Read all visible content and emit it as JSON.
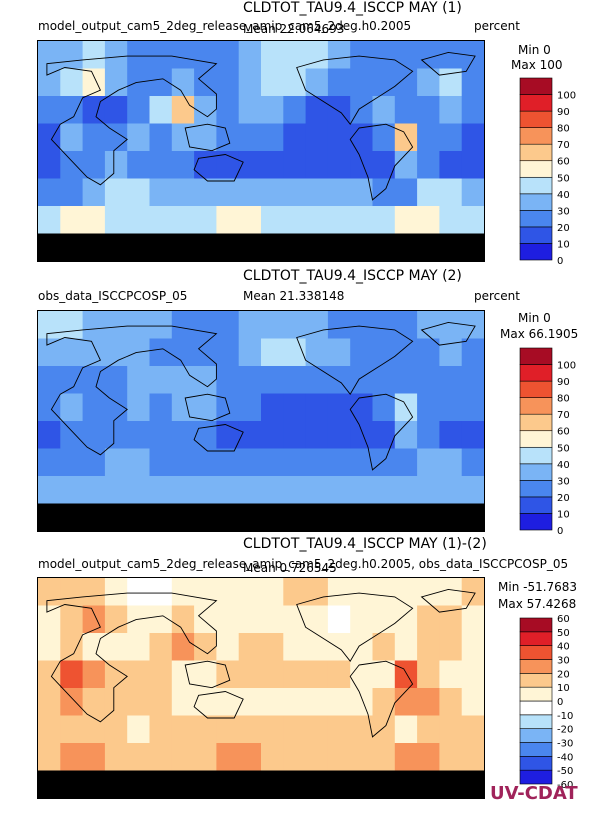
{
  "logo": {
    "text": "UV-CDAT"
  },
  "chart_data": [
    {
      "type": "heatmap",
      "title": "CLDTOT_TAU9.4_ISCCP MAY (1)",
      "dataset": "model_output_cam5_2deg_release_amip_cam5_2deg.h0.2005",
      "mean_label": "Mean 22.064693",
      "units": "percent",
      "min_label": "Min 0",
      "max_label": "Max 100",
      "levels": [
        0,
        10,
        20,
        30,
        40,
        50,
        60,
        70,
        80,
        90,
        100
      ],
      "colors": [
        "#1e1ee0",
        "#2f55e6",
        "#4a86ee",
        "#7ab4f5",
        "#b8e2fa",
        "#fff5d6",
        "#fcc98c",
        "#f7935a",
        "#ee5331",
        "#e01f28",
        "#a70c24"
      ],
      "cells": [
        [
          30,
          30,
          40,
          30,
          20,
          20,
          20,
          20,
          20,
          30,
          40,
          40,
          40,
          30,
          20,
          20,
          20,
          20,
          20,
          20
        ],
        [
          30,
          40,
          50,
          30,
          20,
          20,
          30,
          20,
          20,
          30,
          40,
          40,
          30,
          20,
          20,
          20,
          20,
          30,
          40,
          20
        ],
        [
          20,
          20,
          10,
          10,
          20,
          40,
          60,
          30,
          20,
          30,
          30,
          20,
          10,
          10,
          20,
          30,
          20,
          20,
          30,
          20
        ],
        [
          10,
          30,
          20,
          20,
          30,
          20,
          30,
          30,
          20,
          20,
          20,
          10,
          10,
          10,
          10,
          20,
          60,
          20,
          20,
          10
        ],
        [
          10,
          20,
          20,
          30,
          20,
          20,
          20,
          10,
          10,
          10,
          10,
          10,
          10,
          10,
          10,
          10,
          30,
          20,
          10,
          10
        ],
        [
          20,
          20,
          30,
          40,
          40,
          30,
          30,
          30,
          30,
          30,
          30,
          30,
          30,
          30,
          30,
          20,
          20,
          40,
          40,
          30
        ],
        [
          40,
          50,
          50,
          40,
          40,
          40,
          40,
          40,
          50,
          50,
          40,
          40,
          40,
          40,
          40,
          40,
          50,
          50,
          40,
          40
        ],
        [
          0,
          0,
          0,
          0,
          0,
          0,
          0,
          0,
          0,
          0,
          0,
          0,
          0,
          0,
          0,
          0,
          0,
          0,
          0,
          0
        ]
      ]
    },
    {
      "type": "heatmap",
      "title": "CLDTOT_TAU9.4_ISCCP MAY (2)",
      "dataset": "obs_data_ISCCPCOSP_05",
      "mean_label": "Mean 21.338148",
      "units": "percent",
      "min_label": "Min 0",
      "max_label": "Max 66.1905",
      "levels": [
        0,
        10,
        20,
        30,
        40,
        50,
        60,
        70,
        80,
        90,
        100
      ],
      "colors": [
        "#1e1ee0",
        "#2f55e6",
        "#4a86ee",
        "#7ab4f5",
        "#b8e2fa",
        "#fff5d6",
        "#fcc98c",
        "#f7935a",
        "#ee5331",
        "#e01f28",
        "#a70c24"
      ],
      "cells": [
        [
          40,
          40,
          30,
          30,
          30,
          30,
          20,
          20,
          20,
          30,
          30,
          30,
          30,
          20,
          20,
          20,
          20,
          30,
          30,
          30
        ],
        [
          30,
          30,
          30,
          30,
          30,
          20,
          20,
          20,
          20,
          30,
          40,
          40,
          30,
          30,
          20,
          20,
          20,
          20,
          30,
          20
        ],
        [
          20,
          20,
          20,
          20,
          30,
          30,
          30,
          30,
          20,
          20,
          20,
          20,
          20,
          20,
          20,
          20,
          20,
          20,
          20,
          20
        ],
        [
          20,
          30,
          20,
          20,
          30,
          20,
          30,
          30,
          20,
          20,
          10,
          10,
          10,
          10,
          10,
          20,
          40,
          20,
          20,
          20
        ],
        [
          10,
          20,
          20,
          20,
          20,
          20,
          20,
          20,
          10,
          10,
          10,
          10,
          10,
          10,
          10,
          10,
          30,
          20,
          10,
          10
        ],
        [
          20,
          20,
          20,
          30,
          30,
          20,
          20,
          20,
          20,
          20,
          20,
          20,
          20,
          20,
          20,
          20,
          20,
          30,
          30,
          20
        ],
        [
          30,
          30,
          30,
          30,
          30,
          30,
          30,
          30,
          30,
          30,
          30,
          30,
          30,
          30,
          30,
          30,
          30,
          30,
          30,
          30
        ],
        [
          0,
          0,
          0,
          0,
          0,
          0,
          0,
          0,
          0,
          0,
          0,
          0,
          0,
          0,
          0,
          0,
          0,
          0,
          0,
          0
        ]
      ]
    },
    {
      "type": "heatmap",
      "title": "CLDTOT_TAU9.4_ISCCP MAY (1)-(2)",
      "dataset": "model_output_cam5_2deg_release_amip_cam5_2deg.h0.2005, obs_data_ISCCPCOSP_05",
      "mean_label": "Mean 0.726545",
      "units": "",
      "min_label": "Min -51.7683",
      "max_label": "Max 57.4268",
      "levels": [
        -60,
        -50,
        -40,
        -30,
        -20,
        -10,
        0,
        10,
        20,
        30,
        40,
        50,
        60
      ],
      "colors": [
        "#1e1ee0",
        "#2f55e6",
        "#4a86ee",
        "#7ab4f5",
        "#b8e2fa",
        "#ffffff",
        "#fff5d6",
        "#fcc98c",
        "#f7935a",
        "#ee5331",
        "#e01f28",
        "#a70c24"
      ],
      "cells": [
        [
          10,
          10,
          10,
          0,
          -10,
          -10,
          0,
          0,
          0,
          0,
          0,
          10,
          10,
          0,
          0,
          0,
          0,
          0,
          0,
          10
        ],
        [
          0,
          10,
          20,
          10,
          0,
          0,
          10,
          0,
          0,
          0,
          0,
          0,
          0,
          -10,
          0,
          0,
          0,
          10,
          10,
          0
        ],
        [
          0,
          10,
          0,
          0,
          0,
          10,
          20,
          10,
          0,
          10,
          10,
          0,
          0,
          0,
          0,
          10,
          0,
          10,
          10,
          0
        ],
        [
          10,
          30,
          20,
          10,
          10,
          10,
          0,
          0,
          10,
          10,
          10,
          10,
          10,
          10,
          0,
          0,
          30,
          10,
          0,
          0
        ],
        [
          10,
          20,
          10,
          10,
          10,
          10,
          0,
          0,
          0,
          0,
          0,
          0,
          0,
          0,
          0,
          10,
          20,
          20,
          10,
          0
        ],
        [
          10,
          10,
          10,
          10,
          0,
          10,
          10,
          10,
          10,
          10,
          10,
          10,
          10,
          10,
          10,
          10,
          0,
          10,
          10,
          10
        ],
        [
          10,
          20,
          20,
          10,
          10,
          10,
          10,
          10,
          20,
          20,
          10,
          10,
          10,
          10,
          10,
          10,
          20,
          20,
          10,
          10
        ],
        [
          0,
          0,
          0,
          0,
          0,
          0,
          0,
          0,
          0,
          0,
          0,
          0,
          0,
          0,
          0,
          0,
          0,
          0,
          0,
          0
        ]
      ]
    }
  ]
}
